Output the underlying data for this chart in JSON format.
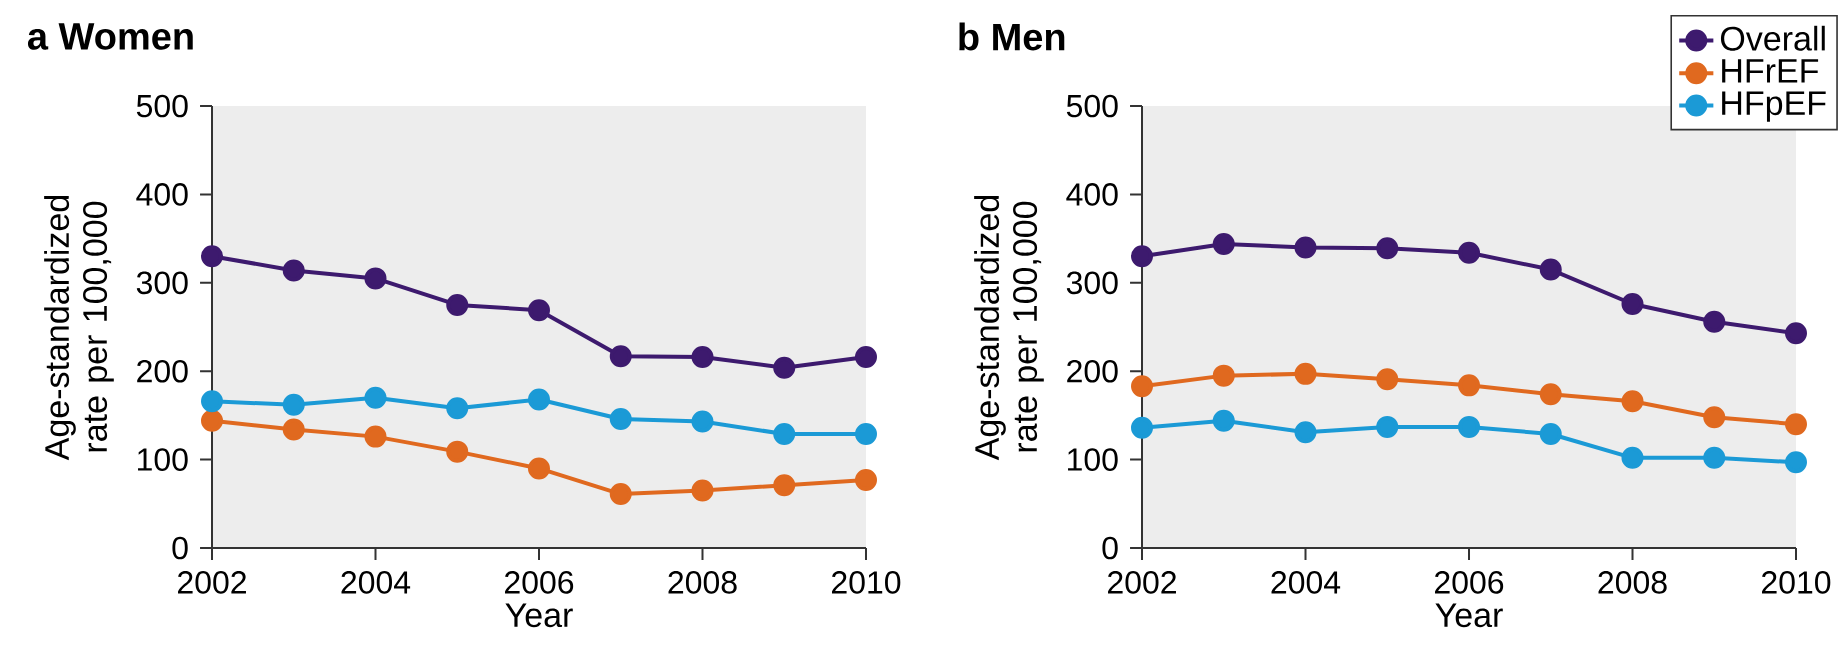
{
  "chart_data": [
    {
      "type": "line",
      "title": "a  Women",
      "xlabel": "Year",
      "ylabel": "Age-standardized rate per 100,000",
      "x": [
        2002,
        2003,
        2004,
        2005,
        2006,
        2007,
        2008,
        2009,
        2010
      ],
      "series": [
        {
          "color": "#3d1a6e",
          "values": [
            330,
            314,
            305,
            275,
            269,
            217,
            216,
            204,
            216
          ]
        },
        {
          "color": "#e0691f",
          "values": [
            144,
            134,
            126,
            109,
            90,
            61,
            65,
            71,
            77
          ]
        },
        {
          "color": "#1b9ad6",
          "values": [
            166,
            162,
            170,
            158,
            168,
            146,
            143,
            129,
            129
          ]
        }
      ],
      "xlim": [
        2002,
        2010
      ],
      "xticks": [
        2002,
        2004,
        2006,
        2008,
        2010
      ],
      "ylim": [
        0,
        500
      ],
      "yticks": [
        0,
        100,
        200,
        300,
        400,
        500
      ],
      "marker": "circle",
      "grid": false
    },
    {
      "type": "line",
      "title": "b  Men",
      "xlabel": "Year",
      "ylabel": "Age-standardized rate per 100,000",
      "x": [
        2002,
        2003,
        2004,
        2005,
        2006,
        2007,
        2008,
        2009,
        2010
      ],
      "series": [
        {
          "name": "Overall",
          "color": "#3d1a6e",
          "values": [
            330,
            344,
            340,
            339,
            334,
            315,
            276,
            256,
            243
          ]
        },
        {
          "name": "HFrEF",
          "color": "#e0691f",
          "values": [
            183,
            195,
            197,
            191,
            184,
            174,
            166,
            148,
            140
          ]
        },
        {
          "name": "HFpEF",
          "color": "#1b9ad6",
          "values": [
            136,
            144,
            131,
            137,
            137,
            129,
            102,
            102,
            97
          ]
        }
      ],
      "xlim": [
        2002,
        2010
      ],
      "xticks": [
        2002,
        2004,
        2006,
        2008,
        2010
      ],
      "ylim": [
        0,
        500
      ],
      "yticks": [
        0,
        100,
        200,
        300,
        400,
        500
      ],
      "marker": "circle",
      "grid": false,
      "legend": "top right"
    }
  ]
}
